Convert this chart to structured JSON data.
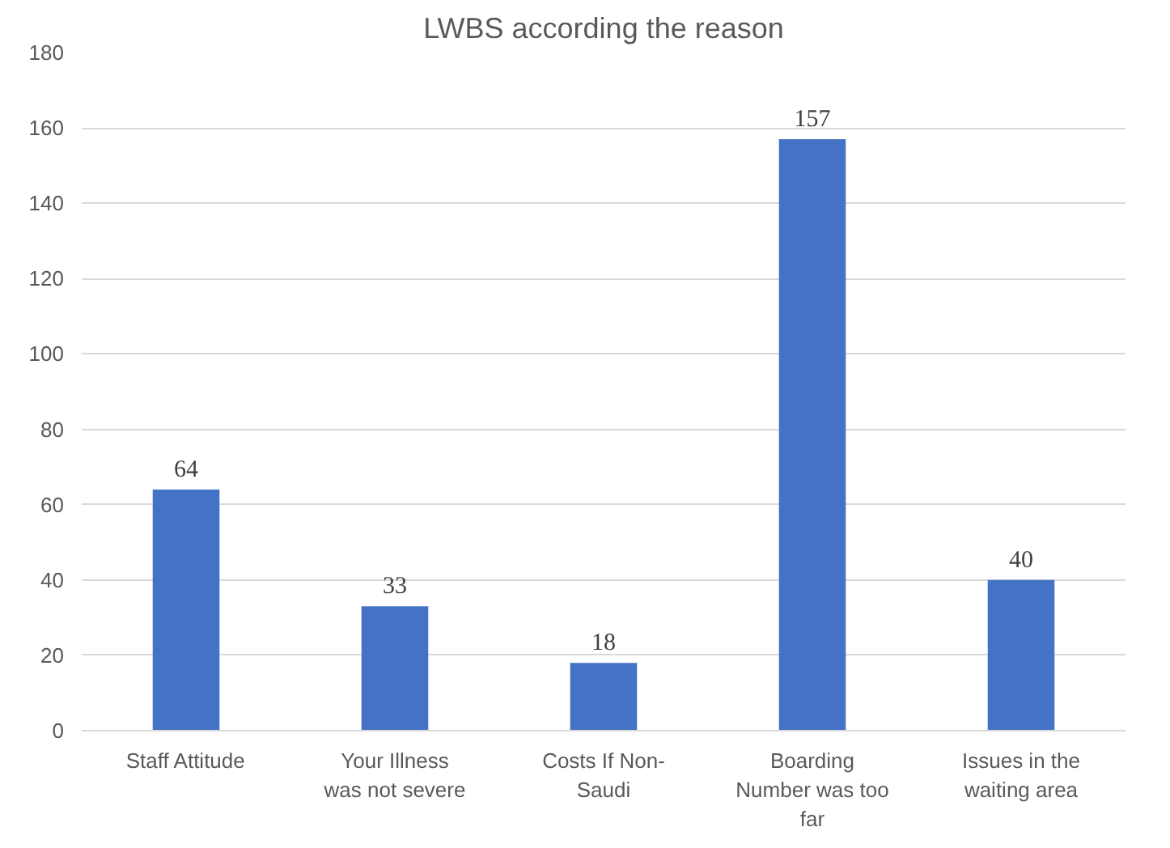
{
  "chart_data": {
    "type": "bar",
    "title": "LWBS according the reason",
    "categories": [
      "Staff Attitude",
      "Your Illness was not severe",
      "Costs If Non-Saudi",
      "Boarding Number was too far",
      "Issues in the waiting area"
    ],
    "values": [
      64,
      33,
      18,
      157,
      40
    ],
    "color": "#4472c4",
    "ylim": [
      0,
      180
    ],
    "yticks": [
      0,
      20,
      40,
      60,
      80,
      100,
      120,
      140,
      160,
      180
    ],
    "grid": "y",
    "data_labels": true
  }
}
